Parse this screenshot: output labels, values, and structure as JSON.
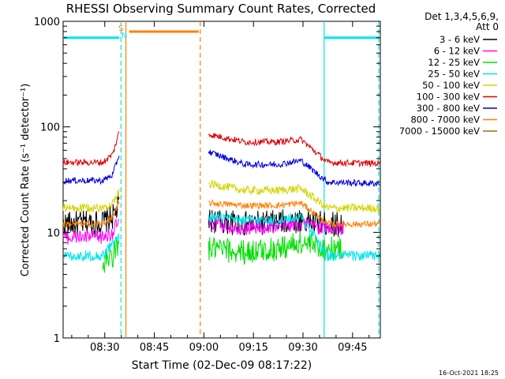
{
  "window": {
    "footer_timestamp": "16-Oct-2021 18:25"
  },
  "chart_data": {
    "type": "line",
    "title": "RHESSI Observing Summary Count Rates, Corrected",
    "xlabel": "Start Time (02-Dec-09 08:17:22)",
    "ylabel": "Corrected Count Rate (s⁻¹ detector⁻¹)",
    "y_scale": "log",
    "ylim": [
      1,
      1000
    ],
    "xlim_minutes": [
      0,
      96
    ],
    "x_ticks": [
      {
        "label": "08:30",
        "at": 12.6
      },
      {
        "label": "08:45",
        "at": 27.6
      },
      {
        "label": "09:00",
        "at": 42.6
      },
      {
        "label": "09:15",
        "at": 57.6
      },
      {
        "label": "09:30",
        "at": 72.6
      },
      {
        "label": "09:45",
        "at": 87.6
      }
    ],
    "y_ticks": [
      {
        "label": "1",
        "value": 1
      },
      {
        "label": "10",
        "value": 10
      },
      {
        "label": "100",
        "value": 100
      },
      {
        "label": "1000",
        "value": 1000
      }
    ],
    "legend": {
      "position": "right",
      "header": [
        "Det 1,3,4,5,6,9,",
        "Att 0"
      ],
      "entries": [
        {
          "label": "3 - 6 keV",
          "color": "#000000"
        },
        {
          "label": "6 - 12 keV",
          "color": "#ff00ff"
        },
        {
          "label": "12 - 25 keV",
          "color": "#00e000"
        },
        {
          "label": "25 - 50 keV",
          "color": "#00e5ee"
        },
        {
          "label": "50 - 100 keV",
          "color": "#d4d400"
        },
        {
          "label": "100 - 300 keV",
          "color": "#e00000"
        },
        {
          "label": "300 - 800 keV",
          "color": "#0000e0"
        },
        {
          "label": "800 - 7000 keV",
          "color": "#ff8000"
        },
        {
          "label": "7000 - 15000 keV",
          "color": "#8b7a00"
        }
      ]
    },
    "series": [
      {
        "name": "3 - 6 keV",
        "color": "#000000",
        "noise": 0.12,
        "pre": [
          [
            0,
            12
          ],
          [
            12,
            12.5
          ],
          [
            15,
            14
          ],
          [
            17,
            18
          ]
        ],
        "post": [
          [
            44,
            13
          ],
          [
            55,
            12
          ],
          [
            65,
            12.5
          ],
          [
            72,
            13
          ],
          [
            80,
            12
          ],
          [
            85,
            12
          ]
        ]
      },
      {
        "name": "6 - 12 keV",
        "color": "#ff00ff",
        "noise": 0.07,
        "pre": [
          [
            0,
            9
          ],
          [
            12,
            9
          ],
          [
            15,
            10
          ],
          [
            17,
            13
          ]
        ],
        "post": [
          [
            44,
            12
          ],
          [
            55,
            11
          ],
          [
            65,
            11.5
          ],
          [
            72,
            12
          ],
          [
            80,
            11
          ],
          [
            85,
            11
          ]
        ]
      },
      {
        "name": "12 - 25 keV",
        "color": "#00e000",
        "noise": 0.12,
        "pre": [
          [
            12,
            5
          ],
          [
            15,
            6
          ],
          [
            17,
            8
          ]
        ],
        "post": [
          [
            44,
            7
          ],
          [
            55,
            6.5
          ],
          [
            65,
            7
          ],
          [
            72,
            8
          ],
          [
            80,
            7
          ],
          [
            85,
            7
          ]
        ]
      },
      {
        "name": "25 - 50 keV",
        "color": "#00e5ee",
        "noise": 0.05,
        "pre": [
          [
            0,
            6
          ],
          [
            12,
            6
          ],
          [
            15,
            8
          ],
          [
            17,
            9
          ]
        ],
        "post": [
          [
            44,
            14
          ],
          [
            55,
            13
          ],
          [
            65,
            13
          ],
          [
            72,
            14
          ],
          [
            80,
            6
          ],
          [
            96,
            6
          ]
        ]
      },
      {
        "name": "50 - 100 keV",
        "color": "#d4d400",
        "noise": 0.04,
        "pre": [
          [
            0,
            17
          ],
          [
            12,
            17
          ],
          [
            15,
            19
          ],
          [
            17,
            24
          ]
        ],
        "post": [
          [
            44,
            29
          ],
          [
            55,
            25
          ],
          [
            65,
            25
          ],
          [
            72,
            26
          ],
          [
            80,
            17
          ],
          [
            96,
            17
          ]
        ]
      },
      {
        "name": "100 - 300 keV",
        "color": "#e00000",
        "noise": 0.03,
        "pre": [
          [
            0,
            46
          ],
          [
            12,
            46
          ],
          [
            15,
            55
          ],
          [
            17,
            90
          ]
        ],
        "post": [
          [
            44,
            85
          ],
          [
            55,
            72
          ],
          [
            65,
            72
          ],
          [
            72,
            76
          ],
          [
            80,
            46
          ],
          [
            96,
            45
          ]
        ]
      },
      {
        "name": "300 - 800 keV",
        "color": "#0000e0",
        "noise": 0.03,
        "pre": [
          [
            0,
            31
          ],
          [
            12,
            31
          ],
          [
            15,
            35
          ],
          [
            17,
            55
          ]
        ],
        "post": [
          [
            44,
            58
          ],
          [
            55,
            44
          ],
          [
            65,
            44
          ],
          [
            72,
            48
          ],
          [
            80,
            30
          ],
          [
            96,
            29
          ]
        ]
      },
      {
        "name": "800 - 7000 keV",
        "color": "#ff8000",
        "noise": 0.03,
        "pre": [
          [
            0,
            12
          ],
          [
            12,
            12
          ],
          [
            15,
            14
          ],
          [
            17,
            19
          ]
        ],
        "post": [
          [
            44,
            19
          ],
          [
            55,
            18
          ],
          [
            65,
            18
          ],
          [
            72,
            19
          ],
          [
            80,
            12
          ],
          [
            96,
            12
          ]
        ]
      }
    ],
    "status_bars": [
      {
        "color": "#00e5ee",
        "value": 700,
        "from": 0,
        "to": 17
      },
      {
        "color": "#00e5ee",
        "value": 700,
        "from": 79,
        "to": 96
      },
      {
        "color": "#ff8000",
        "value": 800,
        "from": 20,
        "to": 41
      }
    ],
    "markers": [
      {
        "color": "#00e5ee",
        "style": "dashed",
        "at": 17.5
      },
      {
        "color": "#ff8000",
        "style": "solid",
        "at": 19
      },
      {
        "color": "#ff8000",
        "style": "dashed",
        "at": 41.5
      },
      {
        "color": "#00e5ee",
        "style": "solid",
        "at": 79
      },
      {
        "color": "#00e5ee",
        "style": "dashed",
        "at": 95.5
      }
    ],
    "marker_labels": [
      {
        "text": "S",
        "color": "#ff8000",
        "at": 17.5
      },
      {
        "text": "N",
        "color": "#00e5ee",
        "at": 18.5
      }
    ]
  }
}
